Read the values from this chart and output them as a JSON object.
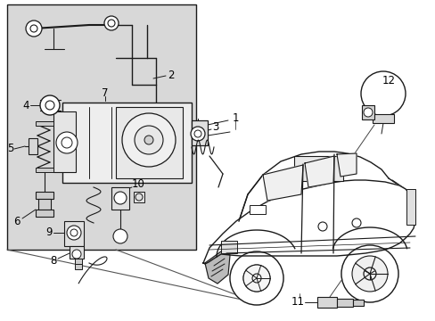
{
  "bg_color": "#ffffff",
  "diagram_bg": "#d8d8d8",
  "line_color": "#1a1a1a",
  "label_color": "#000000",
  "font_size": 8.5,
  "fig_w": 4.89,
  "fig_h": 3.6,
  "dpi": 100
}
